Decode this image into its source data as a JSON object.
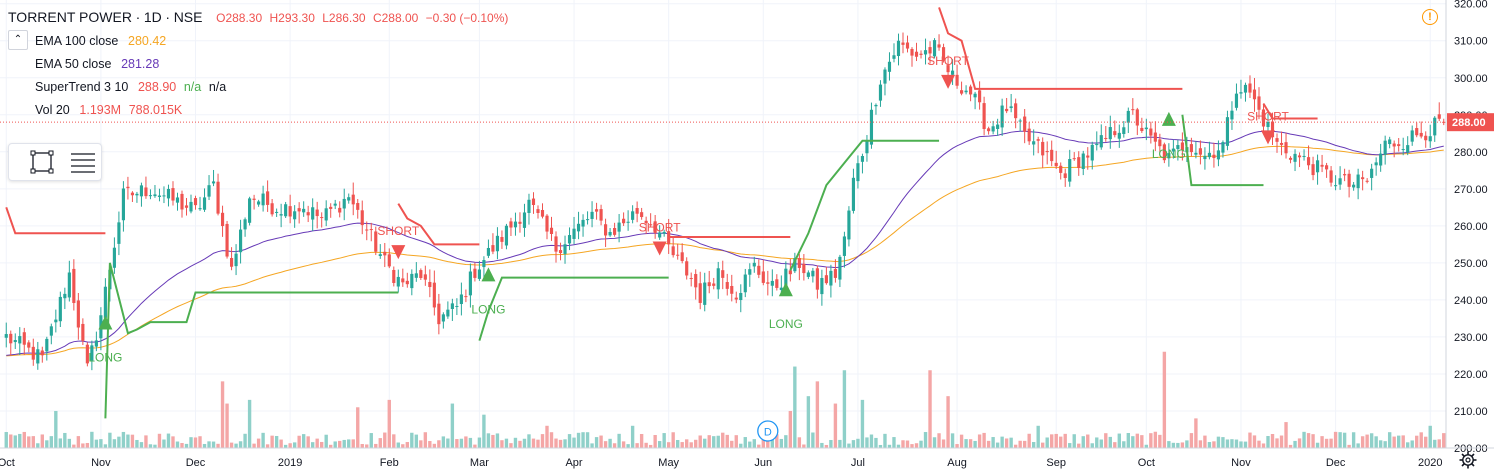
{
  "header": {
    "symbol": "TORRENT POWER",
    "interval": "1D",
    "exchange": "NSE",
    "separator": "·",
    "ohlc": {
      "open": "O288.30",
      "high": "H293.30",
      "low": "L286.30",
      "close": "C288.00",
      "change": "−0.30 (−0.10%)"
    }
  },
  "indicators": [
    {
      "label": "EMA 100 close",
      "values": [
        "280.42"
      ],
      "colors": [
        "#f5a623"
      ]
    },
    {
      "label": "EMA 50 close",
      "values": [
        "281.28"
      ],
      "colors": [
        "#673ab7"
      ]
    },
    {
      "label": "SuperTrend 3 10",
      "values": [
        "288.90",
        "n/a",
        "n/a"
      ],
      "colors": [
        "#ef5350",
        "#4caf50",
        "#131722"
      ]
    },
    {
      "label": "Vol 20",
      "values": [
        "1.193M",
        "788.015K"
      ],
      "colors": [
        "#ef5350",
        "#ef5350"
      ]
    }
  ],
  "icons": {
    "collapse": "chevron-up-icon",
    "tool_rect": "rectangle-icon",
    "tool_lines": "horizontal-lines-icon",
    "warning": "warning-icon",
    "settings": "gear-icon",
    "dividend_marker": "D"
  },
  "chart_data": {
    "type": "candlestick",
    "y_ticks": [
      "200.00",
      "210.00",
      "220.00",
      "230.00",
      "240.00",
      "250.00",
      "260.00",
      "270.00",
      "280.00",
      "290.00",
      "300.00",
      "310.00",
      "320.00"
    ],
    "y_range": [
      200,
      321
    ],
    "x_ticks": [
      {
        "label": "Oct",
        "bar": 0
      },
      {
        "label": "Nov",
        "bar": 21
      },
      {
        "label": "Dec",
        "bar": 42
      },
      {
        "label": "2019",
        "bar": 63
      },
      {
        "label": "Feb",
        "bar": 85
      },
      {
        "label": "Mar",
        "bar": 105
      },
      {
        "label": "Apr",
        "bar": 126
      },
      {
        "label": "May",
        "bar": 147
      },
      {
        "label": "Jun",
        "bar": 168
      },
      {
        "label": "Jul",
        "bar": 189
      },
      {
        "label": "Aug",
        "bar": 211
      },
      {
        "label": "Sep",
        "bar": 233
      },
      {
        "label": "Oct",
        "bar": 253
      },
      {
        "label": "Nov",
        "bar": 274
      },
      {
        "label": "Dec",
        "bar": 295
      },
      {
        "label": "2020",
        "bar": 316
      }
    ],
    "bar_count": 320,
    "last_price": "288.00",
    "colors": {
      "up": "#26a69a",
      "down": "#ef5350",
      "vol_up": "#8fd0c9",
      "vol_down": "#f4a6a6",
      "ema100": "#f5a623",
      "ema50": "#673ab7",
      "st_long": "#4caf50",
      "st_short": "#ef5350"
    },
    "close_anchors": [
      [
        0,
        230
      ],
      [
        8,
        224
      ],
      [
        14,
        247
      ],
      [
        18,
        221
      ],
      [
        21,
        236
      ],
      [
        26,
        268
      ],
      [
        32,
        270
      ],
      [
        42,
        264
      ],
      [
        46,
        271
      ],
      [
        50,
        248
      ],
      [
        54,
        268
      ],
      [
        60,
        265
      ],
      [
        66,
        265
      ],
      [
        70,
        262
      ],
      [
        76,
        268
      ],
      [
        84,
        250
      ],
      [
        88,
        244
      ],
      [
        92,
        247
      ],
      [
        96,
        235
      ],
      [
        100,
        238
      ],
      [
        104,
        248
      ],
      [
        110,
        257
      ],
      [
        116,
        266
      ],
      [
        122,
        254
      ],
      [
        130,
        263
      ],
      [
        134,
        258
      ],
      [
        140,
        264
      ],
      [
        144,
        260
      ],
      [
        148,
        252
      ],
      [
        152,
        246
      ],
      [
        154,
        241
      ],
      [
        158,
        248
      ],
      [
        162,
        242
      ],
      [
        166,
        249
      ],
      [
        170,
        243
      ],
      [
        176,
        250
      ],
      [
        180,
        244
      ],
      [
        184,
        247
      ],
      [
        186,
        256
      ],
      [
        188,
        272
      ],
      [
        190,
        280
      ],
      [
        194,
        300
      ],
      [
        198,
        309
      ],
      [
        202,
        306
      ],
      [
        206,
        308
      ],
      [
        210,
        300
      ],
      [
        214,
        296
      ],
      [
        218,
        286
      ],
      [
        222,
        292
      ],
      [
        226,
        284
      ],
      [
        230,
        280
      ],
      [
        234,
        274
      ],
      [
        238,
        278
      ],
      [
        242,
        281
      ],
      [
        246,
        286
      ],
      [
        250,
        290
      ],
      [
        254,
        283
      ],
      [
        258,
        278
      ],
      [
        262,
        283
      ],
      [
        266,
        279
      ],
      [
        270,
        282
      ],
      [
        273,
        298
      ],
      [
        276,
        296
      ],
      [
        278,
        291
      ],
      [
        282,
        282
      ],
      [
        286,
        279
      ],
      [
        290,
        276
      ],
      [
        294,
        273
      ],
      [
        298,
        271
      ],
      [
        302,
        272
      ],
      [
        306,
        282
      ],
      [
        310,
        283
      ],
      [
        314,
        285
      ],
      [
        319,
        288
      ]
    ],
    "supertrend_segments": [
      {
        "dir": "short",
        "points": [
          [
            0,
            265
          ],
          [
            2,
            258
          ],
          [
            22,
            258
          ]
        ]
      },
      {
        "dir": "long",
        "points": [
          [
            22,
            208
          ],
          [
            23,
            250
          ],
          [
            27,
            231
          ],
          [
            29,
            232
          ],
          [
            32,
            234
          ],
          [
            40,
            234
          ],
          [
            42,
            242
          ],
          [
            68,
            242
          ],
          [
            83,
            242
          ],
          [
            87,
            242
          ]
        ]
      },
      {
        "dir": "short",
        "points": [
          [
            87,
            266
          ],
          [
            89,
            262
          ],
          [
            92,
            260
          ],
          [
            95,
            255
          ],
          [
            105,
            255
          ]
        ]
      },
      {
        "dir": "long",
        "points": [
          [
            105,
            229
          ],
          [
            107,
            237
          ],
          [
            110,
            246
          ],
          [
            140,
            246
          ],
          [
            147,
            246
          ]
        ]
      },
      {
        "dir": "short",
        "points": [
          [
            147,
            257
          ],
          [
            174,
            257
          ]
        ]
      },
      {
        "dir": "long",
        "points": [
          [
            174,
            248
          ],
          [
            178,
            258
          ],
          [
            182,
            271
          ],
          [
            186,
            277
          ],
          [
            190,
            283
          ],
          [
            207,
            283
          ]
        ]
      },
      {
        "dir": "short",
        "points": [
          [
            207,
            319
          ],
          [
            209,
            312
          ],
          [
            212,
            310
          ],
          [
            215,
            297
          ],
          [
            261,
            297
          ]
        ]
      },
      {
        "dir": "long",
        "points": [
          [
            261,
            290
          ],
          [
            263,
            271
          ],
          [
            279,
            271
          ]
        ]
      },
      {
        "dir": "short",
        "points": [
          [
            279,
            293
          ],
          [
            281,
            289
          ],
          [
            291,
            289
          ]
        ]
      }
    ],
    "signals": [
      {
        "type": "long",
        "label": "LONG",
        "bar": 22,
        "price": 232
      },
      {
        "type": "short",
        "label": "SHORT",
        "bar": 87,
        "price": 251
      },
      {
        "type": "long",
        "label": "LONG",
        "bar": 107,
        "price": 245
      },
      {
        "type": "short",
        "label": "SHORT",
        "bar": 145,
        "price": 252
      },
      {
        "type": "long",
        "label": "LONG",
        "bar": 173,
        "price": 241
      },
      {
        "type": "short",
        "label": "SHORT",
        "bar": 209,
        "price": 297
      },
      {
        "type": "long",
        "label": "LONG",
        "bar": 258,
        "price": 287
      },
      {
        "type": "short",
        "label": "SHORT",
        "bar": 280,
        "price": 282
      }
    ],
    "volume_spikes": [
      [
        11,
        210
      ],
      [
        48,
        218
      ],
      [
        49,
        212
      ],
      [
        54,
        213
      ],
      [
        78,
        211
      ],
      [
        85,
        213
      ],
      [
        99,
        212
      ],
      [
        106,
        209
      ],
      [
        120,
        206
      ],
      [
        139,
        206
      ],
      [
        174,
        210
      ],
      [
        175,
        222
      ],
      [
        178,
        214
      ],
      [
        180,
        218
      ],
      [
        184,
        212
      ],
      [
        186,
        221
      ],
      [
        190,
        213
      ],
      [
        205,
        221
      ],
      [
        209,
        214
      ],
      [
        229,
        206
      ],
      [
        257,
        226
      ],
      [
        264,
        208
      ],
      [
        284,
        207
      ],
      [
        316,
        206
      ]
    ],
    "dividend_bar": 169,
    "dividend_label": "D"
  }
}
